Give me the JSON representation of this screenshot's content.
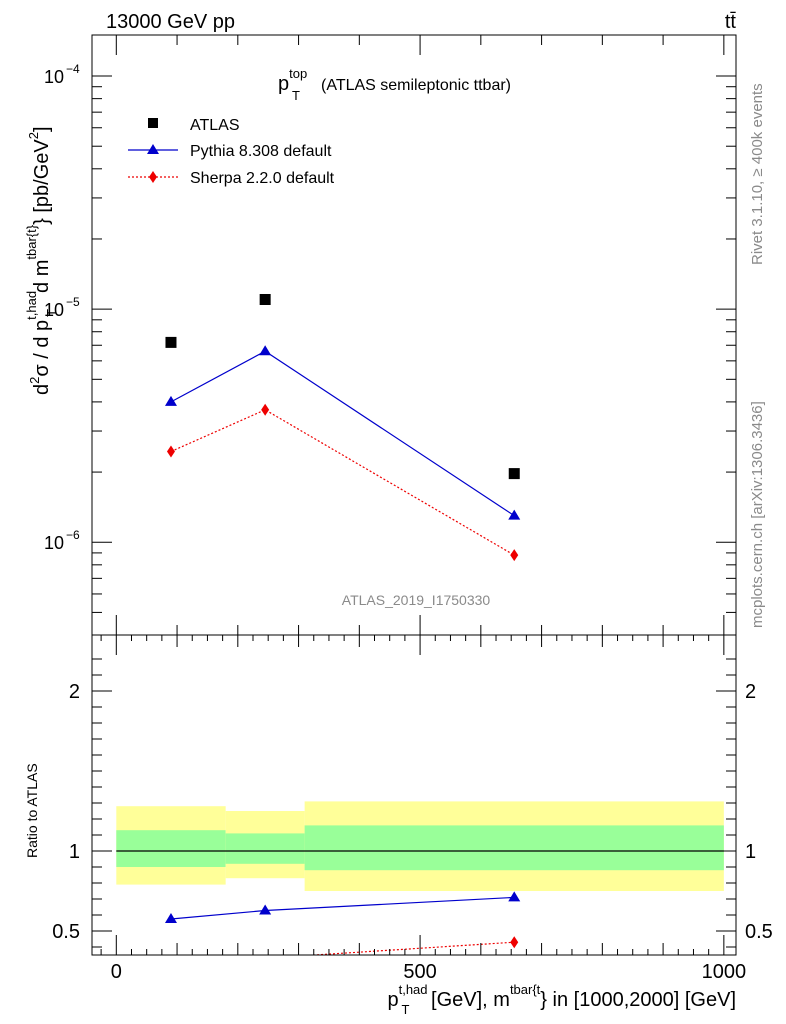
{
  "header": {
    "energy_label": "13000 GeV pp",
    "process_label": "tt̄"
  },
  "side_labels": {
    "rivet": "Rivet 3.1.10, ≥ 400k events",
    "mcplots": "mcplots.cern.ch [arXiv:1306.3436]"
  },
  "colors": {
    "atlas": "#000000",
    "pythia": "#0000cc",
    "sherpa": "#ee0000",
    "band_inner": "#99ff99",
    "band_outer": "#ffff99"
  },
  "chart_data": [
    {
      "type": "scatter",
      "title": {
        "symbol": "p",
        "superscript": "top",
        "subscript": "T",
        "text": "(ATLAS semileptonic ttbar)"
      },
      "ylabel": {
        "d2": "d",
        "two": "2",
        "sigma": "σ / d p",
        "pt_sup": "t,had",
        "pt_sub": "T",
        "dm": "d m",
        "m_sup": "tbar{t}",
        "tail": "} [pb/GeV",
        "gev_sup": "2",
        "close": "]"
      },
      "yscale": "log",
      "ylim": [
        4e-07,
        0.00015
      ],
      "xlim": [
        -40,
        1020
      ],
      "y_ticks": [
        {
          "value": 0.0001,
          "base": "10",
          "exp": "−4"
        },
        {
          "value": 1e-05,
          "base": "10",
          "exp": "−5"
        },
        {
          "value": 1e-06,
          "base": "10",
          "exp": "−6"
        }
      ],
      "watermark": "ATLAS_2019_I1750330",
      "legend_position": "top-left",
      "x": [
        90,
        245,
        655
      ],
      "series": [
        {
          "name": "ATLAS",
          "values": [
            7.2e-06,
            1.1e-05,
            1.97e-06
          ]
        },
        {
          "name": "Pythia 8.308 default",
          "values": [
            4e-06,
            6.6e-06,
            1.3e-06
          ]
        },
        {
          "name": "Sherpa 2.2.0 default",
          "values": [
            2.45e-06,
            3.7e-06,
            8.8e-07
          ]
        }
      ]
    },
    {
      "type": "line",
      "ylabel": "Ratio to ATLAS",
      "ylim": [
        0.35,
        2.35
      ],
      "y_ticks": [
        {
          "value": 2,
          "label": "2"
        },
        {
          "value": 1,
          "label": "1"
        },
        {
          "value": 0.5,
          "label": "0.5"
        }
      ],
      "xlim": [
        -40,
        1020
      ],
      "x_ticks": [
        {
          "value": 0,
          "label": "0"
        },
        {
          "value": 500,
          "label": "500"
        },
        {
          "value": 1000,
          "label": "1000"
        }
      ],
      "xlabel": {
        "p": "p",
        "pt_sup": "t,had",
        "pt_sub": "T",
        "mid": " [GeV], m",
        "m_sup": "tbar{t",
        "tail": "} in [1000,2000] [GeV]"
      },
      "bins": [
        {
          "x_low": 0,
          "x_high": 180,
          "inner": [
            0.9,
            1.13
          ],
          "outer": [
            0.79,
            1.28
          ]
        },
        {
          "x_low": 180,
          "x_high": 310,
          "inner": [
            0.92,
            1.11
          ],
          "outer": [
            0.83,
            1.25
          ]
        },
        {
          "x_low": 310,
          "x_high": 1000,
          "inner": [
            0.88,
            1.16
          ],
          "outer": [
            0.75,
            1.31
          ]
        }
      ],
      "x": [
        90,
        245,
        655
      ],
      "series": [
        {
          "name": "Pythia 8.308 default",
          "values": [
            0.575,
            0.628,
            0.71
          ]
        },
        {
          "name": "Sherpa 2.2.0 default",
          "values": [
            null,
            0.33,
            0.43
          ]
        }
      ]
    }
  ]
}
